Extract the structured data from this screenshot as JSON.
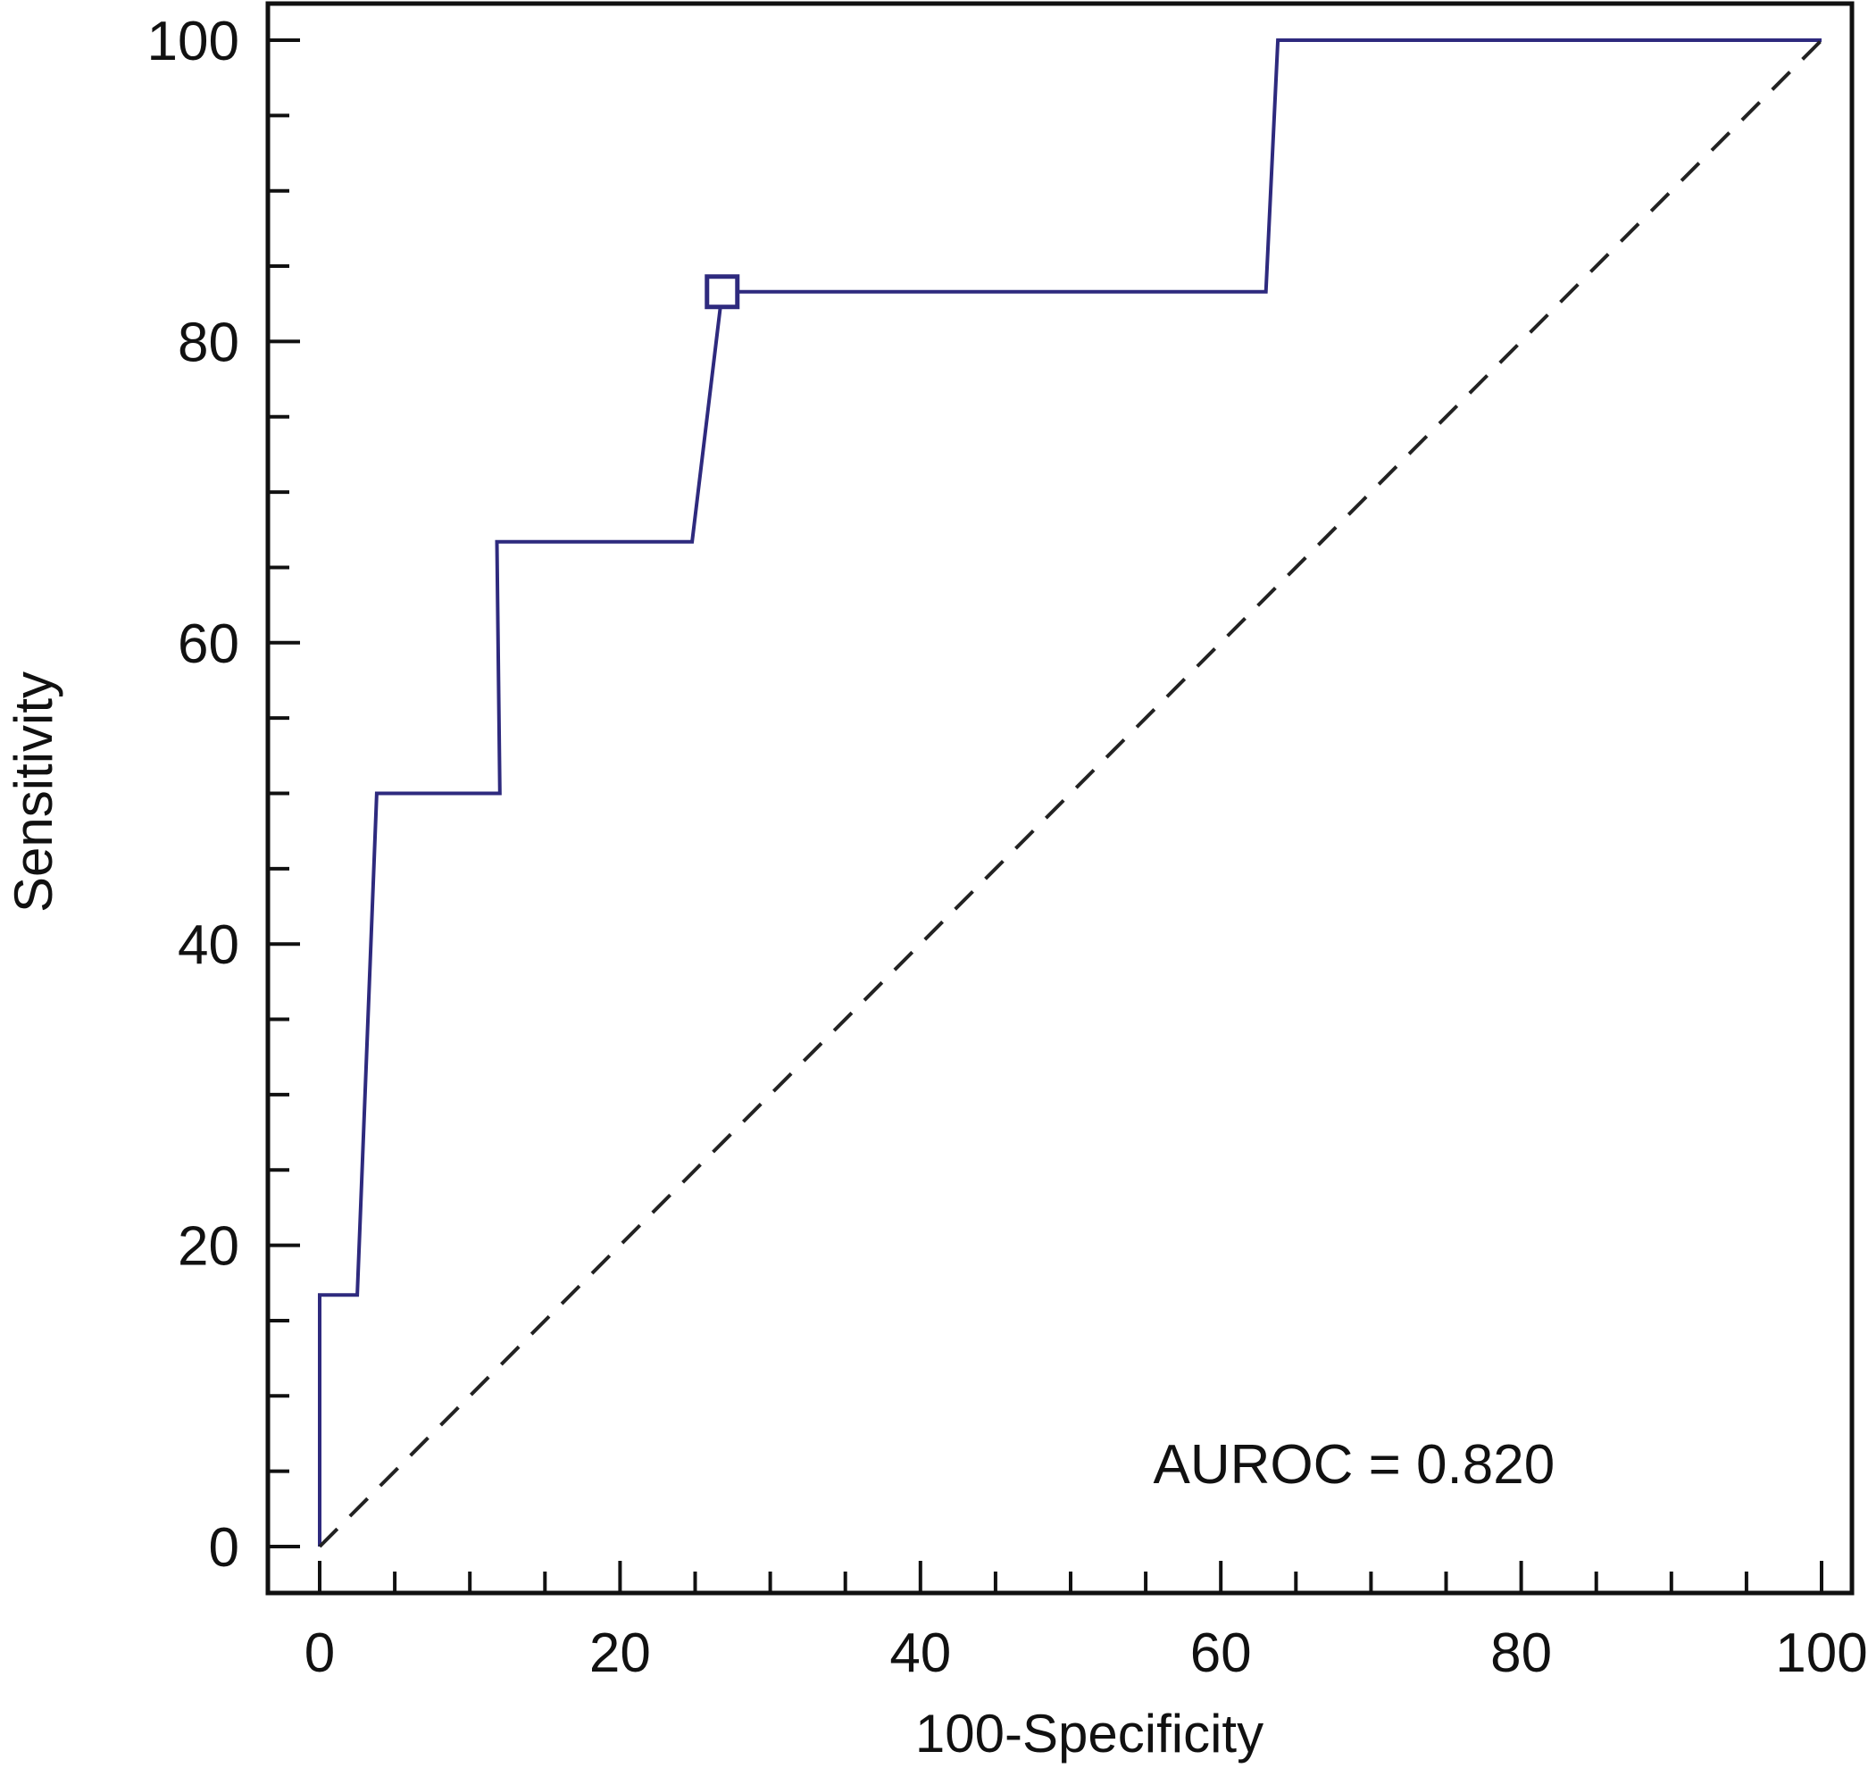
{
  "chart_data": {
    "type": "line",
    "xlabel": "100-Specificity",
    "ylabel": "Sensitivity",
    "xlim": [
      0,
      100
    ],
    "ylim": [
      0,
      100
    ],
    "x_ticks": [
      0,
      20,
      40,
      60,
      80,
      100
    ],
    "y_ticks": [
      0,
      20,
      40,
      60,
      80,
      100
    ],
    "x_tick_labels": [
      "0",
      "20",
      "40",
      "60",
      "80",
      "100"
    ],
    "y_tick_labels": [
      "0",
      "20",
      "40",
      "60",
      "80",
      "100"
    ],
    "x_minor_step": 5,
    "y_minor_step": 5,
    "grid": false,
    "series": [
      {
        "line_color": "#2e2a7e",
        "line_style": "solid",
        "x": [
          0,
          0,
          2.5,
          3.8,
          12.0,
          11.8,
          24.8,
          26.8,
          63.0,
          63.8,
          100
        ],
        "y": [
          0,
          16.7,
          16.7,
          50.0,
          50.0,
          66.7,
          66.7,
          83.3,
          83.3,
          100,
          100
        ]
      },
      {
        "line_color": "#222222",
        "line_style": "dashed",
        "x": [
          0,
          100
        ],
        "y": [
          0,
          100
        ]
      }
    ],
    "highlight_point": {
      "x": 26.8,
      "y": 83.3,
      "marker": "square",
      "color": "#2e2a7e"
    },
    "annotation": {
      "text": "AUROC = 0.820",
      "x": 55.5,
      "y": 4.2
    }
  }
}
